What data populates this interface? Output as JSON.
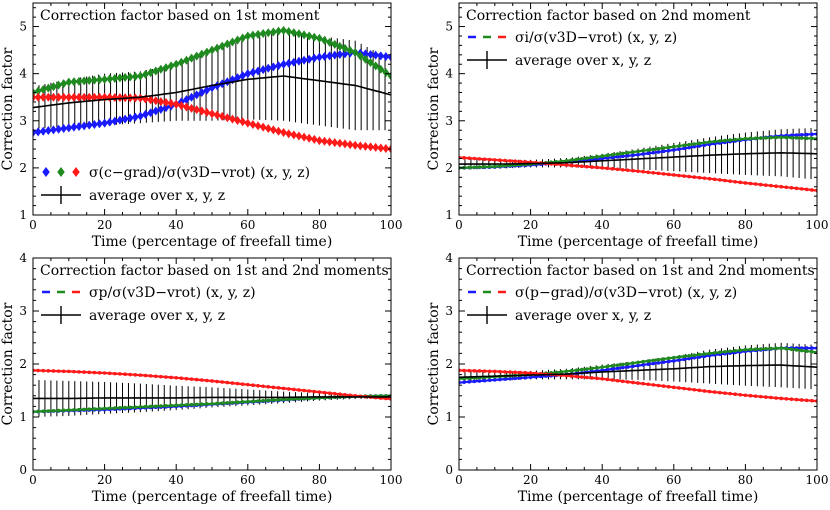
{
  "figure": {
    "xlabel": "Time (percentage of freefall time)",
    "ylabel": "Correction factor",
    "colors": {
      "blue": "#1a1aff",
      "green": "#1f8a1f",
      "red": "#ff1a1a",
      "black": "#000000"
    }
  },
  "chart_data": [
    {
      "type": "line",
      "title": "Correction factor based on 1st moment",
      "xlabel": "Time (percentage of freefall time)",
      "ylabel": "Correction factor",
      "xlim": [
        0,
        100
      ],
      "ylim": [
        1,
        5.5
      ],
      "xticks": [
        0,
        20,
        40,
        60,
        80,
        100
      ],
      "yticks": [
        1,
        2,
        3,
        4,
        5
      ],
      "legend_position": "lower-left",
      "legend": [
        {
          "kind": "color-markers",
          "text": "σ(c−grad)/σ(v3D−vrot) (x, y, z)",
          "marker": "diamond"
        },
        {
          "kind": "errorbar",
          "text": "average over x, y, z"
        }
      ],
      "series": [
        {
          "color": "blue",
          "marker": "diamond",
          "x": [
            0,
            10,
            20,
            30,
            40,
            50,
            60,
            70,
            80,
            90,
            100
          ],
          "y": [
            2.75,
            2.85,
            2.95,
            3.1,
            3.35,
            3.7,
            4.0,
            4.2,
            4.35,
            4.45,
            4.35
          ]
        },
        {
          "color": "green",
          "marker": "diamond",
          "x": [
            0,
            10,
            20,
            30,
            40,
            50,
            60,
            70,
            80,
            90,
            100
          ],
          "y": [
            3.6,
            3.82,
            3.88,
            3.95,
            4.2,
            4.5,
            4.8,
            4.92,
            4.75,
            4.45,
            3.95
          ]
        },
        {
          "color": "red",
          "marker": "diamond",
          "x": [
            0,
            10,
            20,
            30,
            40,
            50,
            60,
            70,
            80,
            90,
            100
          ],
          "y": [
            3.5,
            3.5,
            3.5,
            3.48,
            3.35,
            3.15,
            2.95,
            2.75,
            2.58,
            2.48,
            2.4
          ]
        }
      ],
      "average": {
        "x": [
          0,
          10,
          20,
          30,
          40,
          50,
          60,
          70,
          80,
          90,
          100
        ],
        "y": [
          3.28,
          3.38,
          3.45,
          3.5,
          3.6,
          3.75,
          3.88,
          3.95,
          3.85,
          3.75,
          3.55
        ],
        "err": [
          0.45,
          0.5,
          0.55,
          0.55,
          0.6,
          0.75,
          0.85,
          0.95,
          0.95,
          0.95,
          0.75
        ]
      }
    },
    {
      "type": "line",
      "title": "Correction factor based on 2nd moment",
      "xlabel": "Time (percentage of freefall time)",
      "ylabel": "Correction factor",
      "xlim": [
        0,
        100
      ],
      "ylim": [
        1,
        5.5
      ],
      "xticks": [
        0,
        20,
        40,
        60,
        80,
        100
      ],
      "yticks": [
        1,
        2,
        3,
        4,
        5
      ],
      "legend_position": "upper-left",
      "legend": [
        {
          "kind": "color-markers",
          "text": "σi/σ(v3D−vrot) (x, y, z)",
          "marker": "small"
        },
        {
          "kind": "errorbar",
          "text": "average over x, y, z"
        }
      ],
      "series": [
        {
          "color": "blue",
          "marker": "small",
          "x": [
            0,
            10,
            20,
            30,
            40,
            50,
            60,
            70,
            80,
            90,
            100
          ],
          "y": [
            2.0,
            2.02,
            2.06,
            2.12,
            2.2,
            2.28,
            2.38,
            2.5,
            2.6,
            2.68,
            2.72
          ]
        },
        {
          "color": "green",
          "marker": "small",
          "x": [
            0,
            10,
            20,
            30,
            40,
            50,
            60,
            70,
            80,
            90,
            100
          ],
          "y": [
            2.0,
            2.03,
            2.08,
            2.15,
            2.25,
            2.35,
            2.45,
            2.55,
            2.62,
            2.65,
            2.62
          ]
        },
        {
          "color": "red",
          "marker": "small",
          "x": [
            0,
            10,
            20,
            30,
            40,
            50,
            60,
            70,
            80,
            90,
            100
          ],
          "y": [
            2.22,
            2.17,
            2.12,
            2.06,
            2.0,
            1.93,
            1.85,
            1.77,
            1.68,
            1.6,
            1.52
          ]
        }
      ],
      "average": {
        "x": [
          0,
          10,
          20,
          30,
          40,
          50,
          60,
          70,
          80,
          90,
          100
        ],
        "y": [
          2.08,
          2.08,
          2.09,
          2.11,
          2.15,
          2.19,
          2.23,
          2.27,
          2.3,
          2.32,
          2.3
        ],
        "err": [
          0.12,
          0.1,
          0.08,
          0.1,
          0.15,
          0.22,
          0.3,
          0.38,
          0.45,
          0.5,
          0.55
        ]
      }
    },
    {
      "type": "line",
      "title": "Correction factor based on 1st and 2nd moments",
      "xlabel": "Time (percentage of freefall time)",
      "ylabel": "Correction factor",
      "xlim": [
        0,
        100
      ],
      "ylim": [
        0,
        4
      ],
      "xticks": [
        0,
        20,
        40,
        60,
        80,
        100
      ],
      "yticks": [
        0,
        1,
        2,
        3,
        4
      ],
      "legend_position": "upper-left",
      "legend": [
        {
          "kind": "color-markers",
          "text": "σp/σ(v3D−vrot) (x, y, z)",
          "marker": "small"
        },
        {
          "kind": "errorbar",
          "text": "average over x, y, z"
        }
      ],
      "series": [
        {
          "color": "blue",
          "marker": "small",
          "x": [
            0,
            10,
            20,
            30,
            40,
            50,
            60,
            70,
            80,
            90,
            100
          ],
          "y": [
            1.1,
            1.12,
            1.14,
            1.17,
            1.2,
            1.24,
            1.28,
            1.32,
            1.36,
            1.39,
            1.4
          ]
        },
        {
          "color": "green",
          "marker": "small",
          "x": [
            0,
            10,
            20,
            30,
            40,
            50,
            60,
            70,
            80,
            90,
            100
          ],
          "y": [
            1.1,
            1.13,
            1.16,
            1.19,
            1.22,
            1.25,
            1.29,
            1.33,
            1.36,
            1.39,
            1.4
          ]
        },
        {
          "color": "red",
          "marker": "small",
          "x": [
            0,
            10,
            20,
            30,
            40,
            50,
            60,
            70,
            80,
            90,
            100
          ],
          "y": [
            1.88,
            1.86,
            1.83,
            1.79,
            1.74,
            1.68,
            1.61,
            1.54,
            1.47,
            1.4,
            1.34
          ]
        }
      ],
      "average": {
        "x": [
          0,
          10,
          20,
          30,
          40,
          50,
          60,
          70,
          80,
          90,
          100
        ],
        "y": [
          1.35,
          1.35,
          1.36,
          1.36,
          1.36,
          1.37,
          1.37,
          1.37,
          1.38,
          1.38,
          1.38
        ],
        "err": [
          0.35,
          0.33,
          0.3,
          0.27,
          0.23,
          0.19,
          0.15,
          0.11,
          0.07,
          0.04,
          0.03
        ]
      }
    },
    {
      "type": "line",
      "title": "Correction factor based on 1st and 2nd moments",
      "xlabel": "Time (percentage of freefall time)",
      "ylabel": "Correction factor",
      "xlim": [
        0,
        100
      ],
      "ylim": [
        0,
        4
      ],
      "xticks": [
        0,
        20,
        40,
        60,
        80,
        100
      ],
      "yticks": [
        0,
        1,
        2,
        3,
        4
      ],
      "legend_position": "upper-left",
      "legend": [
        {
          "kind": "color-markers",
          "text": "σ(p−grad)/σ(v3D−vrot) (x, y, z)",
          "marker": "small"
        },
        {
          "kind": "errorbar",
          "text": "average over x, y, z"
        }
      ],
      "series": [
        {
          "color": "blue",
          "marker": "small",
          "x": [
            0,
            10,
            20,
            30,
            40,
            50,
            60,
            70,
            80,
            90,
            100
          ],
          "y": [
            1.65,
            1.7,
            1.75,
            1.8,
            1.88,
            1.97,
            2.06,
            2.16,
            2.24,
            2.3,
            2.3
          ]
        },
        {
          "color": "green",
          "marker": "small",
          "x": [
            0,
            10,
            20,
            30,
            40,
            50,
            60,
            70,
            80,
            90,
            100
          ],
          "y": [
            1.72,
            1.76,
            1.8,
            1.86,
            1.94,
            2.03,
            2.12,
            2.2,
            2.27,
            2.3,
            2.22
          ]
        },
        {
          "color": "red",
          "marker": "small",
          "x": [
            0,
            10,
            20,
            30,
            40,
            50,
            60,
            70,
            80,
            90,
            100
          ],
          "y": [
            1.88,
            1.86,
            1.83,
            1.78,
            1.72,
            1.64,
            1.56,
            1.48,
            1.41,
            1.35,
            1.3
          ]
        }
      ],
      "average": {
        "x": [
          0,
          10,
          20,
          30,
          40,
          50,
          60,
          70,
          80,
          90,
          100
        ],
        "y": [
          1.75,
          1.77,
          1.79,
          1.81,
          1.85,
          1.88,
          1.91,
          1.95,
          1.97,
          1.98,
          1.94
        ],
        "err": [
          0.1,
          0.09,
          0.08,
          0.1,
          0.14,
          0.18,
          0.24,
          0.32,
          0.38,
          0.42,
          0.42
        ]
      }
    }
  ]
}
